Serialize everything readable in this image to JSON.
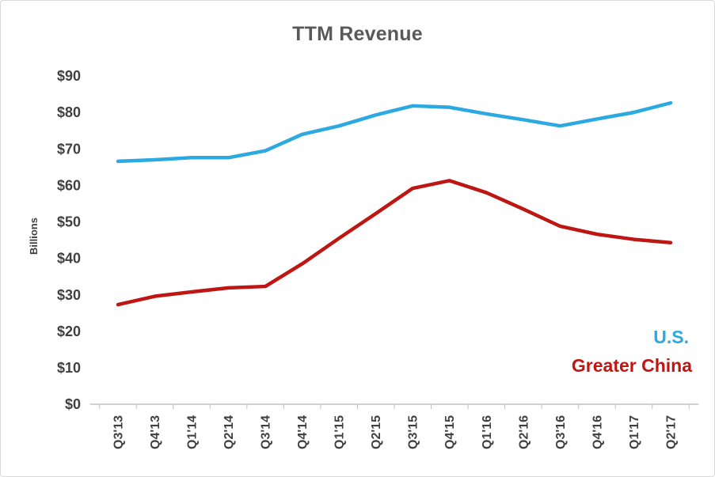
{
  "chart_data": {
    "type": "line",
    "title": "TTM Revenue",
    "ylabel": "Billions",
    "xlabel": "",
    "ylim": [
      0,
      90
    ],
    "y_tick_step": 10,
    "y_tick_labels": [
      "$0",
      "$10",
      "$20",
      "$30",
      "$40",
      "$50",
      "$60",
      "$70",
      "$80",
      "$90"
    ],
    "grid": false,
    "legend_position": "right-middle",
    "categories": [
      "Q3'13",
      "Q4'13",
      "Q1'14",
      "Q2'14",
      "Q3'14",
      "Q4'14",
      "Q1'15",
      "Q2'15",
      "Q3'15",
      "Q4'15",
      "Q1'16",
      "Q2'16",
      "Q3'16",
      "Q4'16",
      "Q1'17",
      "Q2'17"
    ],
    "series": [
      {
        "name": "U.S.",
        "color": "#2CA9E1",
        "values": [
          66.6,
          67.0,
          67.6,
          67.6,
          69.5,
          74.0,
          76.3,
          79.3,
          81.8,
          81.4,
          79.6,
          78.0,
          76.3,
          78.2,
          80.0,
          82.6
        ]
      },
      {
        "name": "Greater China",
        "color": "#BE1612",
        "values": [
          27.3,
          29.6,
          30.8,
          31.9,
          32.3,
          38.5,
          45.5,
          52.3,
          59.2,
          61.3,
          58.0,
          53.5,
          48.8,
          46.6,
          45.2,
          44.3
        ]
      }
    ],
    "axis_color": "#bfbfbf",
    "title_color": "#595959",
    "tick_label_color": "#404040"
  }
}
